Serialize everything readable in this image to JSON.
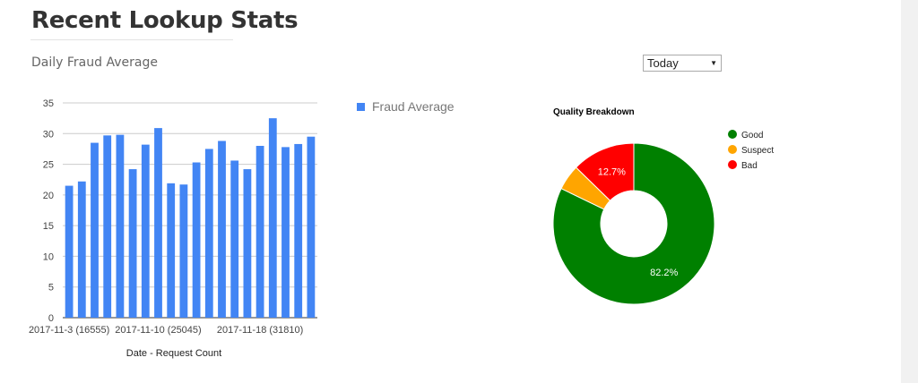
{
  "page": {
    "title": "Recent Lookup Stats",
    "bar_chart_title": "Daily Fraud Average"
  },
  "period_select": {
    "value": "Today",
    "arrow": "▼"
  },
  "chart_data": [
    {
      "type": "bar",
      "xlabel": "Date - Request Count",
      "ylim": [
        0,
        35
      ],
      "yticks": [
        0,
        5,
        10,
        15,
        20,
        25,
        30,
        35
      ],
      "grid": true,
      "legend": "right",
      "color": "#4285f4",
      "x_tick_labels": [
        "2017-11-3 (16555)",
        "2017-11-10 (25045)",
        "2017-11-18 (31810)"
      ],
      "series": [
        {
          "name": "Fraud Average",
          "values": [
            21.5,
            22.2,
            28.5,
            29.7,
            29.8,
            24.2,
            28.2,
            30.9,
            21.9,
            21.7,
            25.3,
            27.5,
            28.8,
            25.6,
            24.2,
            28.0,
            32.5,
            27.8,
            28.3,
            29.5
          ]
        }
      ]
    },
    {
      "type": "pie",
      "title": "Quality Breakdown",
      "donut": true,
      "legend": "right",
      "slices": [
        {
          "label": "Good",
          "value": 82.2,
          "color": "#008000",
          "data_label": "82.2%"
        },
        {
          "label": "Suspect",
          "value": 5.1,
          "color": "#ffa500",
          "data_label": ""
        },
        {
          "label": "Bad",
          "value": 12.7,
          "color": "#ff0000",
          "data_label": "12.7%"
        }
      ]
    }
  ]
}
